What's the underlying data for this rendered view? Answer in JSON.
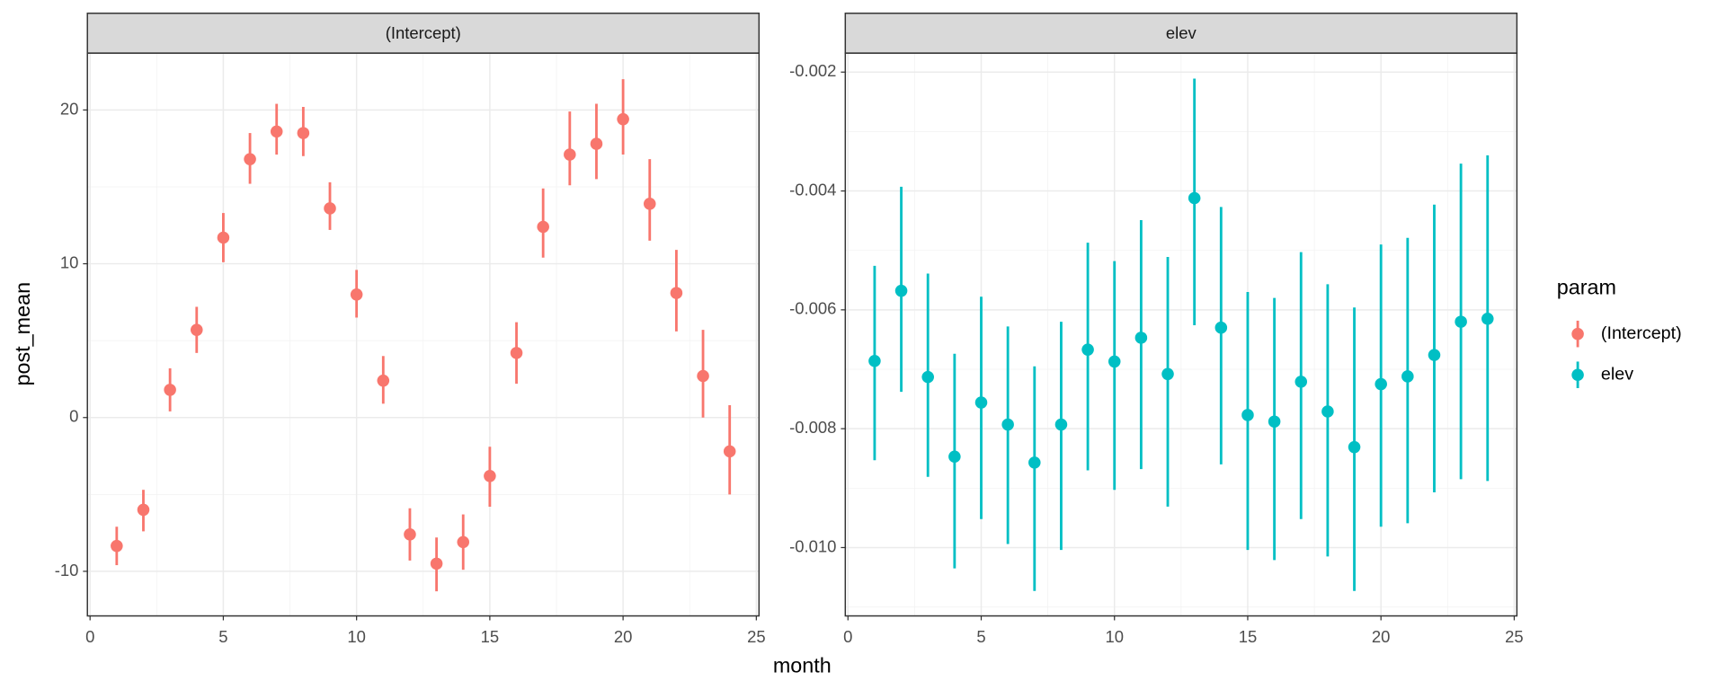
{
  "chart_data": [
    {
      "type": "pointrange",
      "title": "(Intercept)",
      "x": [
        1,
        2,
        3,
        4,
        5,
        6,
        7,
        8,
        9,
        10,
        11,
        12,
        13,
        14,
        15,
        16,
        17,
        18,
        19,
        20,
        21,
        22,
        23,
        24
      ],
      "series": [
        {
          "name": "(Intercept)",
          "color": "#F8766D",
          "values": [
            -8.35,
            -6.0,
            1.8,
            5.7,
            11.7,
            16.8,
            18.6,
            18.5,
            13.6,
            8.0,
            2.4,
            -7.6,
            -9.5,
            -8.1,
            -3.8,
            4.2,
            12.4,
            17.1,
            17.8,
            19.4,
            13.9,
            8.1,
            2.7,
            -2.2
          ],
          "upper": [
            -7.1,
            -4.7,
            3.2,
            7.2,
            13.3,
            18.5,
            20.4,
            20.2,
            15.3,
            9.6,
            4.0,
            -5.9,
            -7.8,
            -6.3,
            -1.9,
            6.2,
            14.9,
            19.9,
            20.4,
            22.0,
            16.8,
            10.9,
            5.7,
            0.8
          ],
          "lower": [
            -9.6,
            -7.4,
            0.4,
            4.2,
            10.1,
            15.2,
            17.1,
            17.0,
            12.2,
            6.5,
            0.9,
            -9.3,
            -11.3,
            -9.9,
            -5.8,
            2.2,
            10.4,
            15.1,
            15.5,
            17.1,
            11.5,
            5.6,
            0.0,
            -5.0
          ]
        }
      ],
      "xlim": [
        -0.1,
        25.1
      ],
      "xticks": [
        0,
        5,
        10,
        15,
        20,
        25
      ],
      "ylim": [
        -12.9,
        23.7
      ],
      "yticks": [
        -10,
        0,
        10,
        20
      ],
      "grid": true
    },
    {
      "type": "pointrange",
      "title": "elev",
      "x": [
        1,
        2,
        3,
        4,
        5,
        6,
        7,
        8,
        9,
        10,
        11,
        12,
        13,
        14,
        15,
        16,
        17,
        18,
        19,
        20,
        21,
        22,
        23,
        24
      ],
      "series": [
        {
          "name": "elev",
          "color": "#00BFC4",
          "values": [
            -0.00686,
            -0.00568,
            -0.00713,
            -0.00847,
            -0.00756,
            -0.00793,
            -0.00857,
            -0.00793,
            -0.00667,
            -0.00687,
            -0.00647,
            -0.00708,
            -0.00412,
            -0.0063,
            -0.00777,
            -0.00788,
            -0.00721,
            -0.00771,
            -0.00831,
            -0.00725,
            -0.00712,
            -0.00676,
            -0.0062,
            -0.00615
          ],
          "upper": [
            -0.00526,
            -0.00393,
            -0.00539,
            -0.00674,
            -0.00578,
            -0.00628,
            -0.00695,
            -0.0062,
            -0.00487,
            -0.00518,
            -0.00449,
            -0.00511,
            -0.00211,
            -0.00427,
            -0.0057,
            -0.0058,
            -0.00503,
            -0.00557,
            -0.00596,
            -0.0049,
            -0.00479,
            -0.00423,
            -0.00354,
            -0.0034
          ],
          "lower": [
            -0.00853,
            -0.00738,
            -0.00881,
            -0.01035,
            -0.00952,
            -0.00994,
            -0.01073,
            -0.01004,
            -0.0087,
            -0.00903,
            -0.00868,
            -0.00931,
            -0.00626,
            -0.0086,
            -0.01004,
            -0.01021,
            -0.00952,
            -0.01015,
            -0.01073,
            -0.00965,
            -0.00959,
            -0.00907,
            -0.00885,
            -0.00888
          ]
        }
      ],
      "xlim": [
        -0.1,
        25.1
      ],
      "xticks": [
        0,
        5,
        10,
        15,
        20,
        25
      ],
      "ylim": [
        -0.01115,
        -0.00168
      ],
      "yticks": [
        {
          "value": -0.01,
          "label": "-0.010"
        },
        -0.008,
        -0.006,
        -0.004,
        -0.002
      ],
      "grid": true
    }
  ],
  "xlabel": "month",
  "ylabel": "post_mean",
  "legend": {
    "title": "param"
  }
}
